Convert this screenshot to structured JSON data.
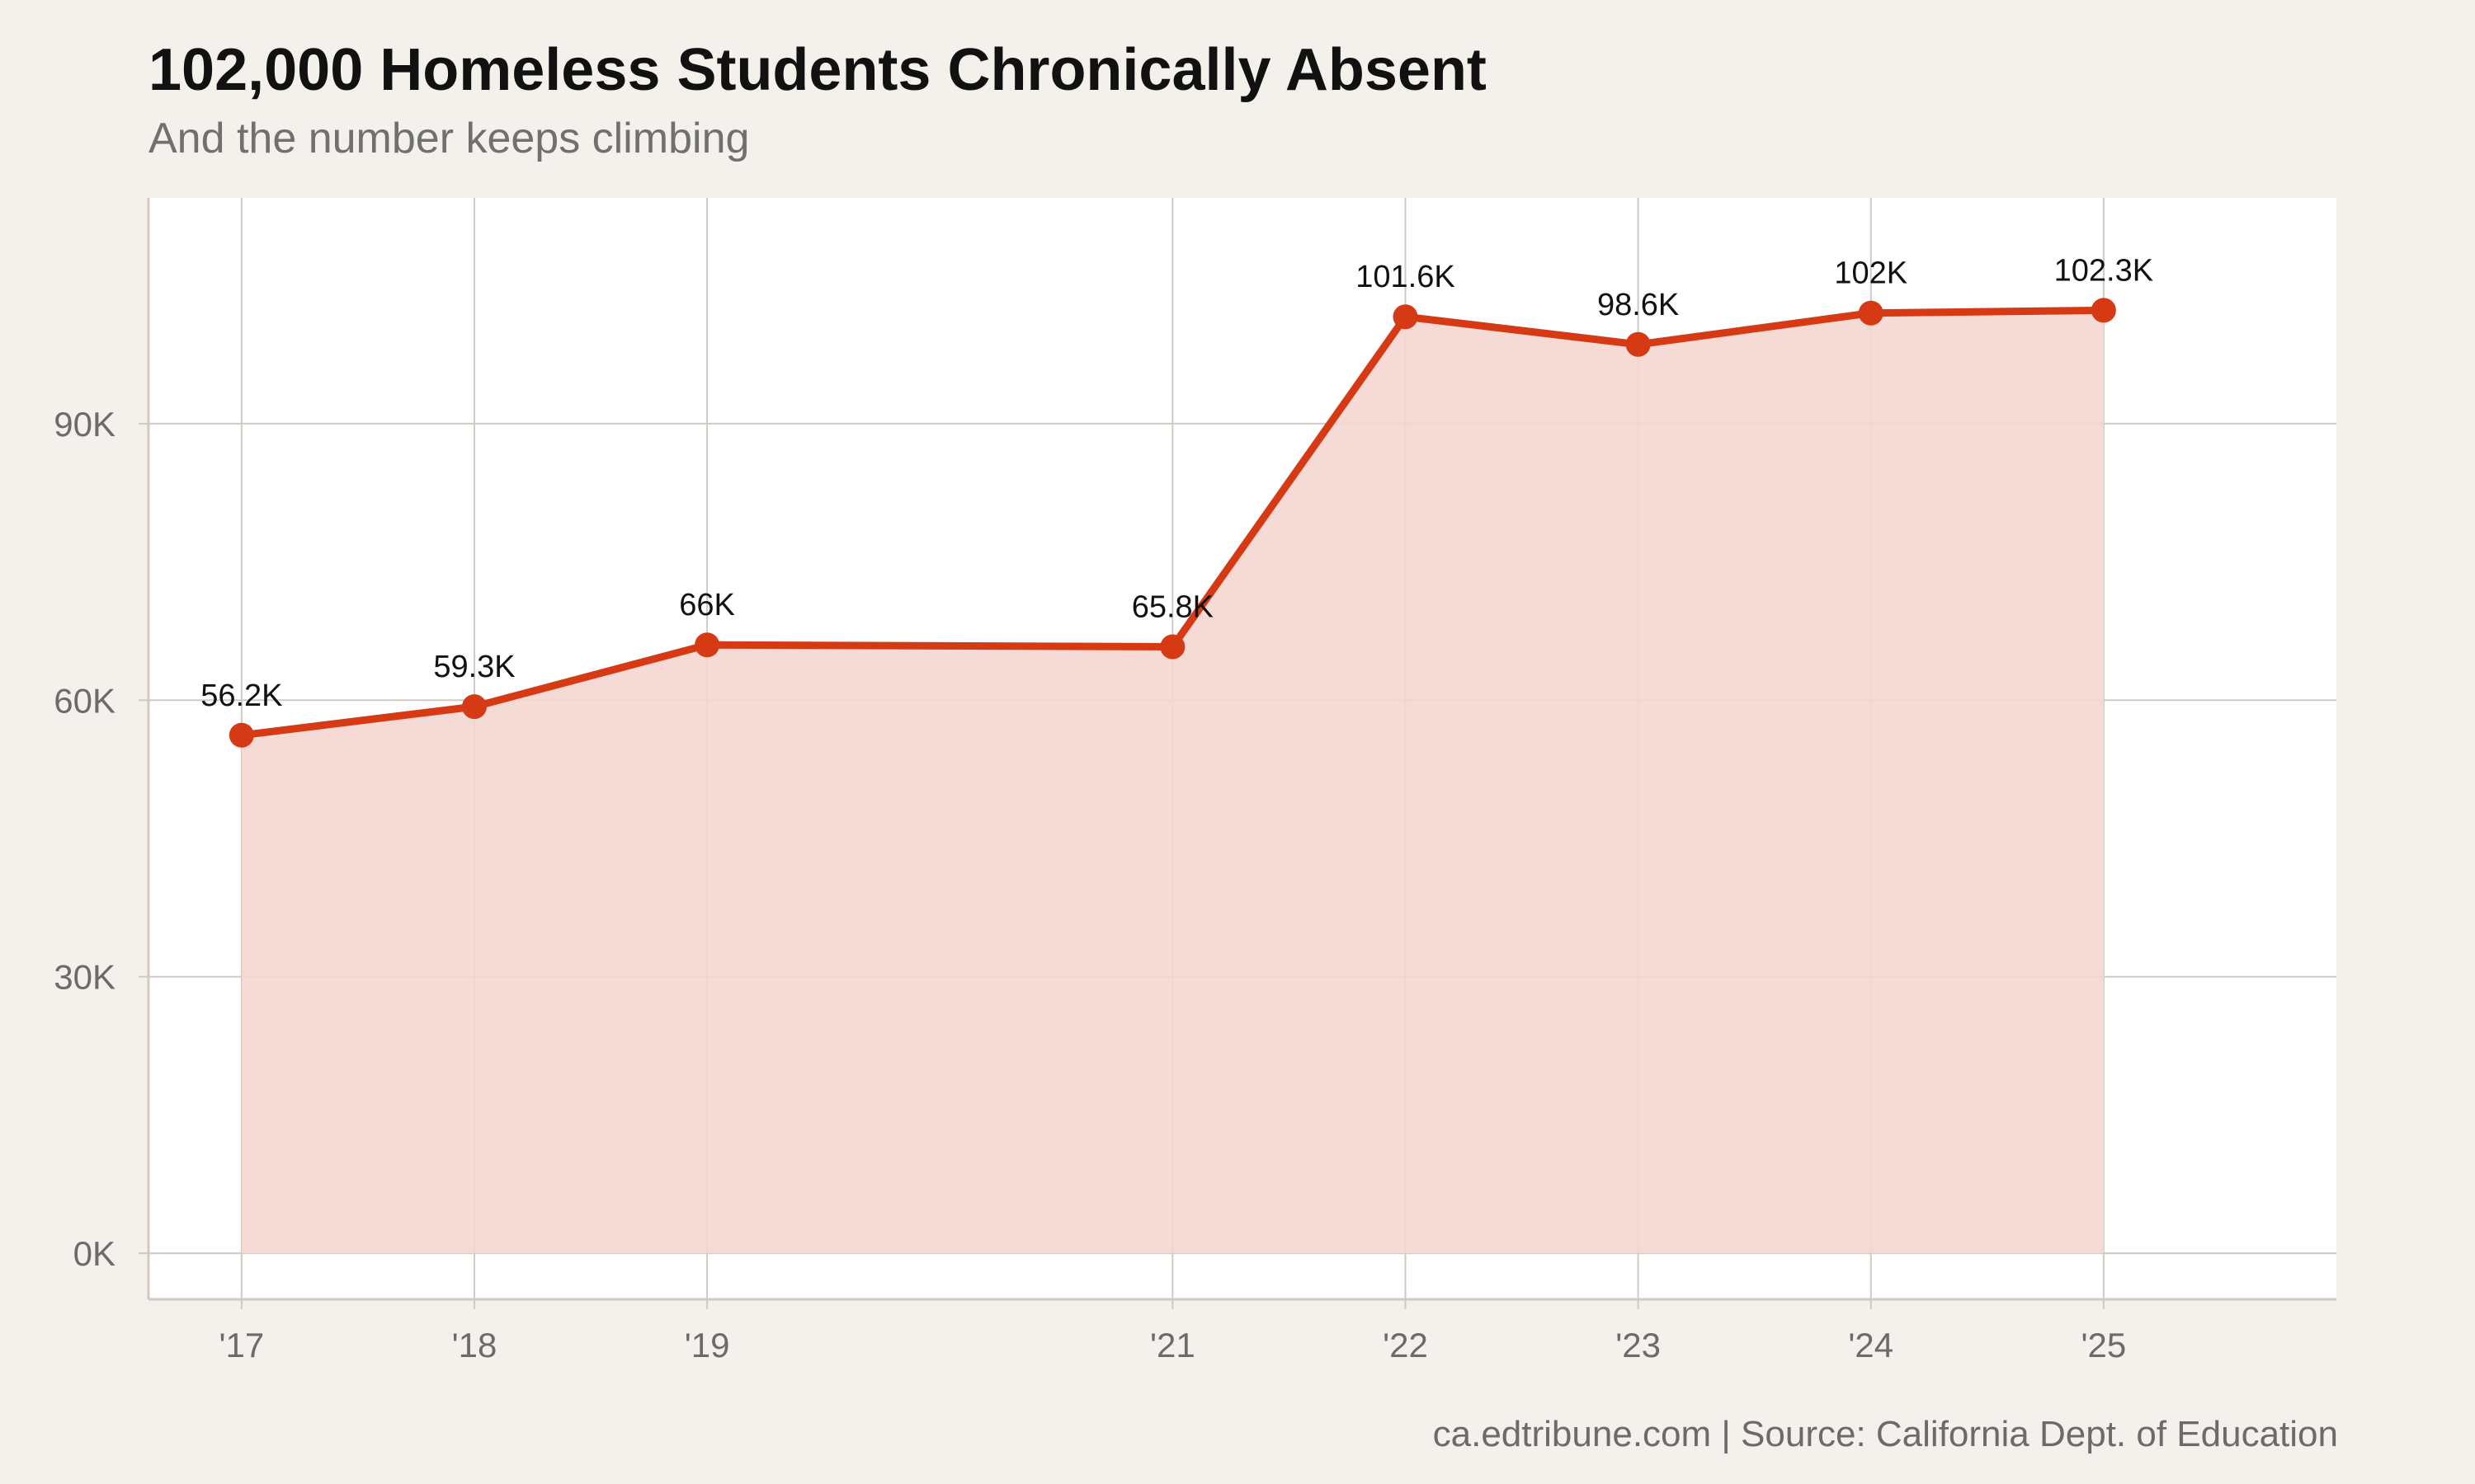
{
  "header": {
    "title": "102,000 Homeless Students Chronically Absent",
    "subtitle": "And the number keeps climbing"
  },
  "footer": {
    "caption": "ca.edtribune.com | Source: California Dept. of Education"
  },
  "colors": {
    "line": "#d63a14",
    "area": "#f4d6d0",
    "plot_background": "#ffffff",
    "page_background": "#f4f1ec",
    "grid": "#cfcac2"
  },
  "chart_data": {
    "type": "area",
    "x": [
      2017,
      2018,
      2019,
      2021,
      2022,
      2023,
      2024,
      2025
    ],
    "tick_labels": [
      "'17",
      "'18",
      "'19",
      "'21",
      "'22",
      "'23",
      "'24",
      "'25"
    ],
    "series": [
      {
        "values": [
          56200,
          59300,
          66000,
          65800,
          101600,
          98600,
          102000,
          102300
        ],
        "data_labels": [
          "56.2K",
          "59.3K",
          "66K",
          "65.8K",
          "101.6K",
          "98.6K",
          "102K",
          "102.3K"
        ]
      }
    ],
    "y_ticks": [
      0,
      30000,
      60000,
      90000
    ],
    "y_tick_labels": [
      "0K",
      "30K",
      "60K",
      "90K"
    ],
    "xlim": [
      2016.6,
      2026.0
    ],
    "ylim": [
      -5000,
      114500
    ],
    "title": "102,000 Homeless Students Chronically Absent",
    "subtitle": "And the number keeps climbing",
    "xlabel": "",
    "ylabel": "",
    "grid": true,
    "legend": "none"
  }
}
